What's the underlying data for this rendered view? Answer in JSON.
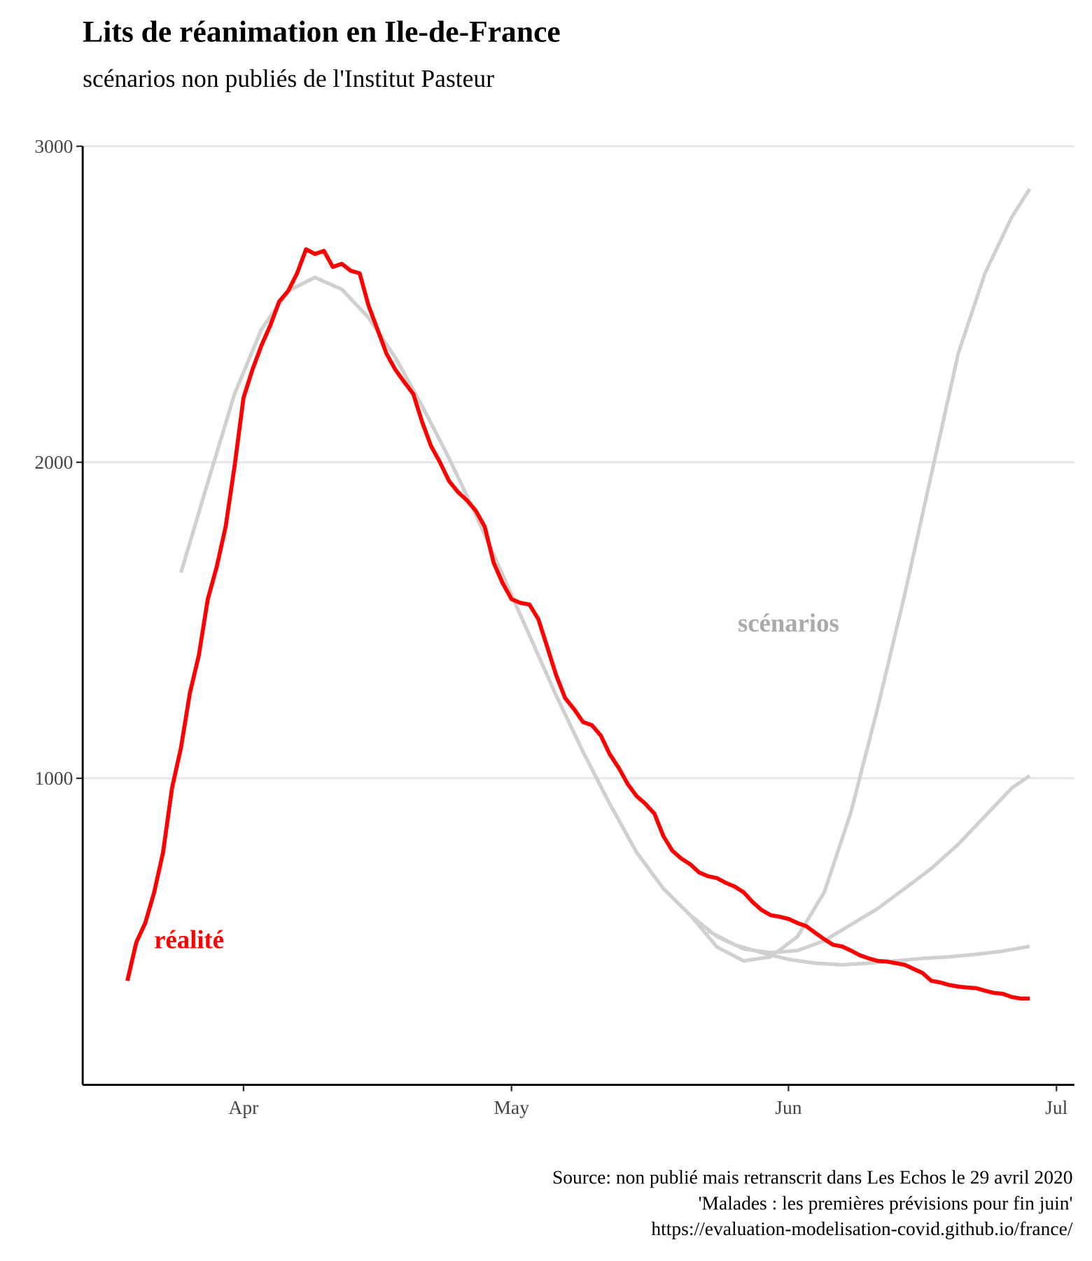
{
  "chart_data": {
    "type": "line",
    "title": "Lits de réanimation en Ile-de-France",
    "subtitle": "scénarios non publiés de l'Institut Pasteur",
    "caption": [
      "Source: non publié mais retranscrit dans Les Echos le 29 avril 2020",
      "'Malades : les premières prévisions pour fin juin'",
      "https://evaluation-modelisation-covid.github.io/france/"
    ],
    "annotations": [
      "réalité",
      "scénarios"
    ],
    "xlim": [
      74,
      185
    ],
    "xticks": [
      {
        "value": 92,
        "label": "Apr"
      },
      {
        "value": 122,
        "label": "May"
      },
      {
        "value": 153,
        "label": "Jun"
      },
      {
        "value": 183,
        "label": "Jul"
      }
    ],
    "ylim": [
      30,
      3000
    ],
    "yticks": [
      1000,
      2000,
      3000
    ],
    "grid": true,
    "series": [
      {
        "color": "#d0d0d0",
        "x": [
          85,
          88,
          91,
          94,
          97,
          100,
          103,
          106,
          109,
          112,
          115,
          118,
          121,
          124,
          127,
          130,
          133,
          136,
          139,
          142,
          145,
          148,
          151,
          154,
          157,
          160,
          163,
          166,
          169,
          172,
          175,
          178,
          180
        ],
        "values": [
          1651,
          1936,
          2216,
          2420,
          2542,
          2585,
          2547,
          2458,
          2331,
          2178,
          2013,
          1835,
          1644,
          1453,
          1262,
          1084,
          919,
          766,
          651,
          567,
          466,
          422,
          435,
          499,
          639,
          893,
          1224,
          1580,
          1962,
          2344,
          2598,
          2776,
          2865
        ]
      },
      {
        "color": "#d0d0d0",
        "x": [
          85,
          88,
          91,
          94,
          97,
          100,
          103,
          106,
          109,
          112,
          115,
          118,
          121,
          124,
          127,
          130,
          133,
          136,
          139,
          142,
          145,
          148,
          151,
          154,
          157,
          160,
          163,
          166,
          169,
          172,
          175,
          178,
          180
        ],
        "values": [
          1651,
          1936,
          2216,
          2420,
          2542,
          2585,
          2547,
          2458,
          2331,
          2178,
          2013,
          1835,
          1644,
          1453,
          1262,
          1084,
          919,
          766,
          651,
          567,
          499,
          460,
          448,
          455,
          486,
          537,
          588,
          651,
          715,
          791,
          880,
          969,
          1008
        ]
      },
      {
        "color": "#d0d0d0",
        "x": [
          144,
          147,
          150,
          153,
          156,
          159,
          162,
          165,
          168,
          171,
          174,
          177,
          180
        ],
        "values": [
          517,
          473,
          448,
          427,
          415,
          410,
          415,
          422,
          430,
          435,
          443,
          453,
          468
        ]
      },
      {
        "color": "#ff0000",
        "x": [
          79,
          80,
          81,
          82,
          83,
          84,
          85,
          86,
          87,
          88,
          89,
          90,
          91,
          92,
          93,
          94,
          95,
          96,
          97,
          98,
          99,
          100,
          101,
          102,
          103,
          104,
          105,
          106,
          107,
          108,
          109,
          110,
          111,
          112,
          113,
          114,
          115,
          116,
          117,
          118,
          119,
          120,
          121,
          122,
          123,
          124,
          125,
          126,
          127,
          128,
          129,
          130,
          131,
          132,
          133,
          134,
          135,
          136,
          137,
          138,
          139,
          140,
          141,
          142,
          143,
          144,
          145,
          146,
          147,
          148,
          149,
          150,
          151,
          152,
          153,
          154,
          155,
          156,
          157,
          158,
          159,
          160,
          161,
          162,
          163,
          164,
          165,
          166,
          167,
          168,
          169,
          170,
          171,
          172,
          173,
          174,
          175,
          176,
          177,
          178,
          179,
          180
        ],
        "values": [
          359,
          481,
          542,
          639,
          766,
          970,
          1097,
          1270,
          1389,
          1567,
          1669,
          1796,
          1987,
          2204,
          2293,
          2369,
          2433,
          2509,
          2542,
          2598,
          2674,
          2659,
          2669,
          2618,
          2628,
          2606,
          2598,
          2496,
          2420,
          2344,
          2293,
          2254,
          2216,
          2127,
          2051,
          2000,
          1941,
          1906,
          1880,
          1847,
          1796,
          1682,
          1618,
          1567,
          1555,
          1550,
          1504,
          1415,
          1326,
          1254,
          1219,
          1178,
          1168,
          1135,
          1076,
          1033,
          982,
          944,
          919,
          888,
          817,
          771,
          746,
          728,
          702,
          690,
          684,
          669,
          657,
          639,
          608,
          583,
          567,
          562,
          555,
          542,
          532,
          511,
          491,
          473,
          468,
          455,
          440,
          430,
          422,
          420,
          415,
          410,
          397,
          384,
          359,
          354,
          346,
          341,
          338,
          336,
          328,
          321,
          318,
          308,
          303,
          303
        ]
      }
    ]
  }
}
